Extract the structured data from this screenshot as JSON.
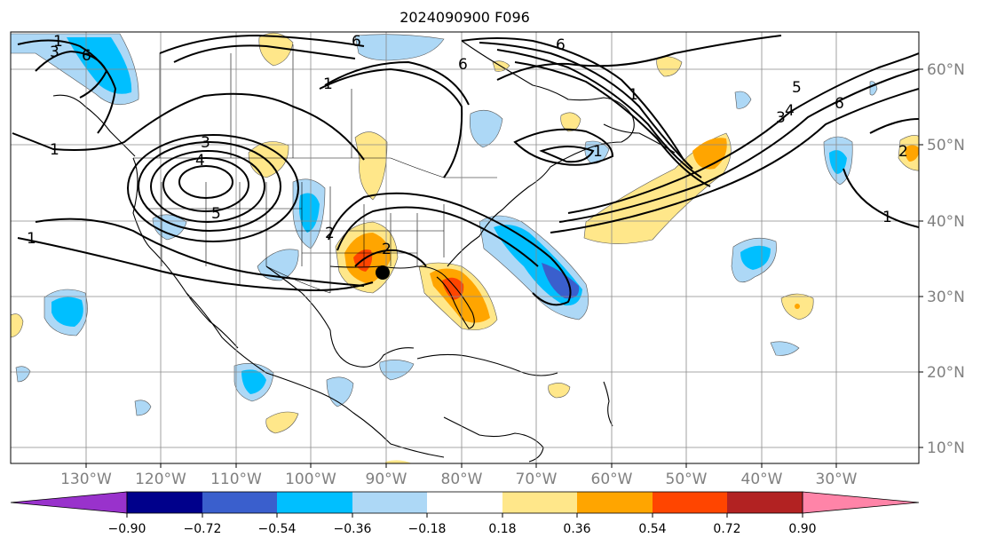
{
  "title": "2024090900 F096",
  "map": {
    "projection": "PlateCarree",
    "lon_range": [
      -142,
      -21
    ],
    "lat_range": [
      8,
      65
    ],
    "lon_ticks": [
      "130°W",
      "120°W",
      "110°W",
      "100°W",
      "90°W",
      "80°W",
      "70°W",
      "60°W",
      "50°W",
      "40°W",
      "30°W"
    ],
    "lat_ticks": [
      "60°N",
      "50°N",
      "40°N",
      "30°N",
      "20°N",
      "10°N"
    ],
    "grid": true,
    "contour_labels": [
      "6",
      "1",
      "2",
      "3",
      "4",
      "5",
      "6",
      "1",
      "1",
      "2",
      "3",
      "4",
      "5",
      "6",
      "1",
      "1",
      "2",
      "1",
      "1",
      "3",
      "6",
      "6"
    ],
    "marker": "storm-center"
  },
  "colorbar": {
    "ticks": [
      "−0.90",
      "−0.72",
      "−0.54",
      "−0.36",
      "−0.18",
      "0.18",
      "0.36",
      "0.54",
      "0.72",
      "0.90"
    ],
    "colors": [
      "#9932cc",
      "#00008b",
      "#3a5fcd",
      "#00bfff",
      "#add8f6",
      "#ffffff",
      "#ffe78a",
      "#ffa500",
      "#ff4500",
      "#b22222",
      "#ff84a8"
    ],
    "extend": "both"
  }
}
